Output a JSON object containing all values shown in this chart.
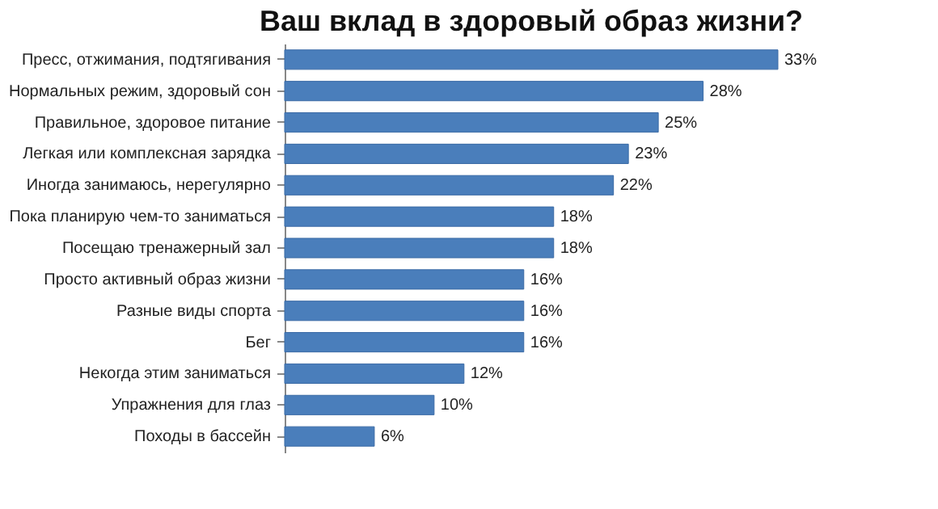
{
  "chart_data": {
    "type": "bar",
    "orientation": "horizontal",
    "title": "Ваш вклад в здоровый образ жизни?",
    "categories": [
      "Пресс, отжимания, подтягивания",
      "Нормальных режим, здоровый сон",
      "Правильное, здоровое питание",
      "Легкая или комплексная зарядка",
      "Иногда занимаюсь, нерегулярно",
      "Пока планирую чем-то заниматься",
      "Посещаю тренажерный зал",
      "Просто активный образ жизни",
      "Разные виды спорта",
      "Бег",
      "Некогда этим заниматься",
      "Упражнения для глаз",
      "Походы в бассейн"
    ],
    "values": [
      33,
      28,
      25,
      23,
      22,
      18,
      18,
      16,
      16,
      16,
      12,
      10,
      6
    ],
    "value_labels": [
      "33%",
      "28%",
      "25%",
      "23%",
      "22%",
      "18%",
      "18%",
      "16%",
      "16%",
      "16%",
      "12%",
      "10%",
      "6%"
    ],
    "color": "#4a7ebb"
  }
}
